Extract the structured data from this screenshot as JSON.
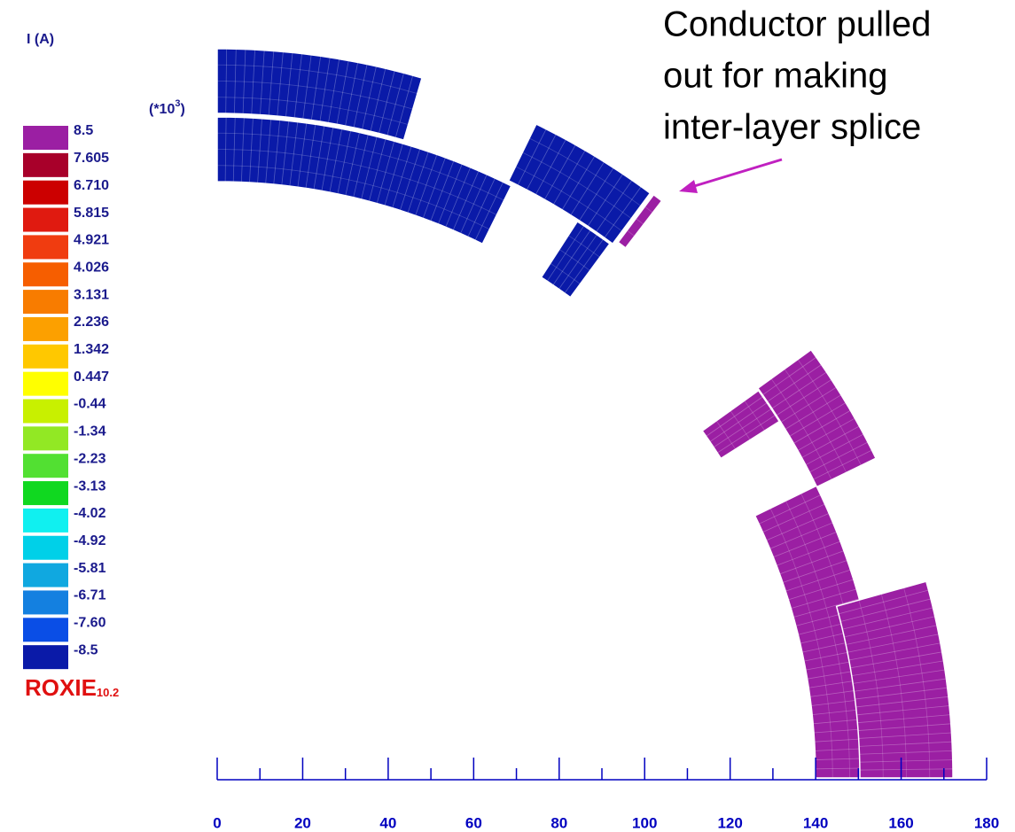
{
  "chart_data": {
    "type": "coil-cross-section",
    "colorbar": {
      "title": "I (A)",
      "scale_label": [
        "(*10",
        "3",
        ")"
      ],
      "levels": [
        8.5,
        7.605,
        {
          "value": 6.71,
          "label": "6.710"
        },
        5.815,
        4.921,
        4.026,
        3.131,
        2.236,
        1.342,
        0.447,
        -0.44,
        -1.34,
        -2.23,
        -3.13,
        -4.02,
        -4.92,
        -5.81,
        -6.71,
        {
          "value": -7.6,
          "label": "-7.60"
        },
        -8.5
      ],
      "colors": [
        "#9b1fa3",
        "#a8002a",
        "#cc0000",
        "#e01a10",
        "#f03c10",
        "#f65e00",
        "#f87c00",
        "#fca000",
        "#ffc800",
        "#ffff00",
        "#c8f000",
        "#92e824",
        "#52e032",
        "#10d820",
        "#10f0f0",
        "#00d0e8",
        "#10a8e0",
        "#1480e0",
        "#0a4ee6",
        "#0a1aa8"
      ]
    },
    "annotation": [
      "Conductor pulled",
      "out for making",
      "inter-layer splice"
    ],
    "annotation_color": "#c020c0",
    "logo": {
      "name": "ROXIE",
      "version": "10.2",
      "color": "#e01010"
    },
    "xlim": [
      0,
      180
    ],
    "xticks": [
      0,
      20,
      40,
      60,
      80,
      100,
      120,
      140,
      160,
      180
    ],
    "xminorticks": [
      10,
      30,
      50,
      70,
      90,
      110,
      130,
      150,
      170
    ],
    "axis_color": "#0000c0"
  }
}
